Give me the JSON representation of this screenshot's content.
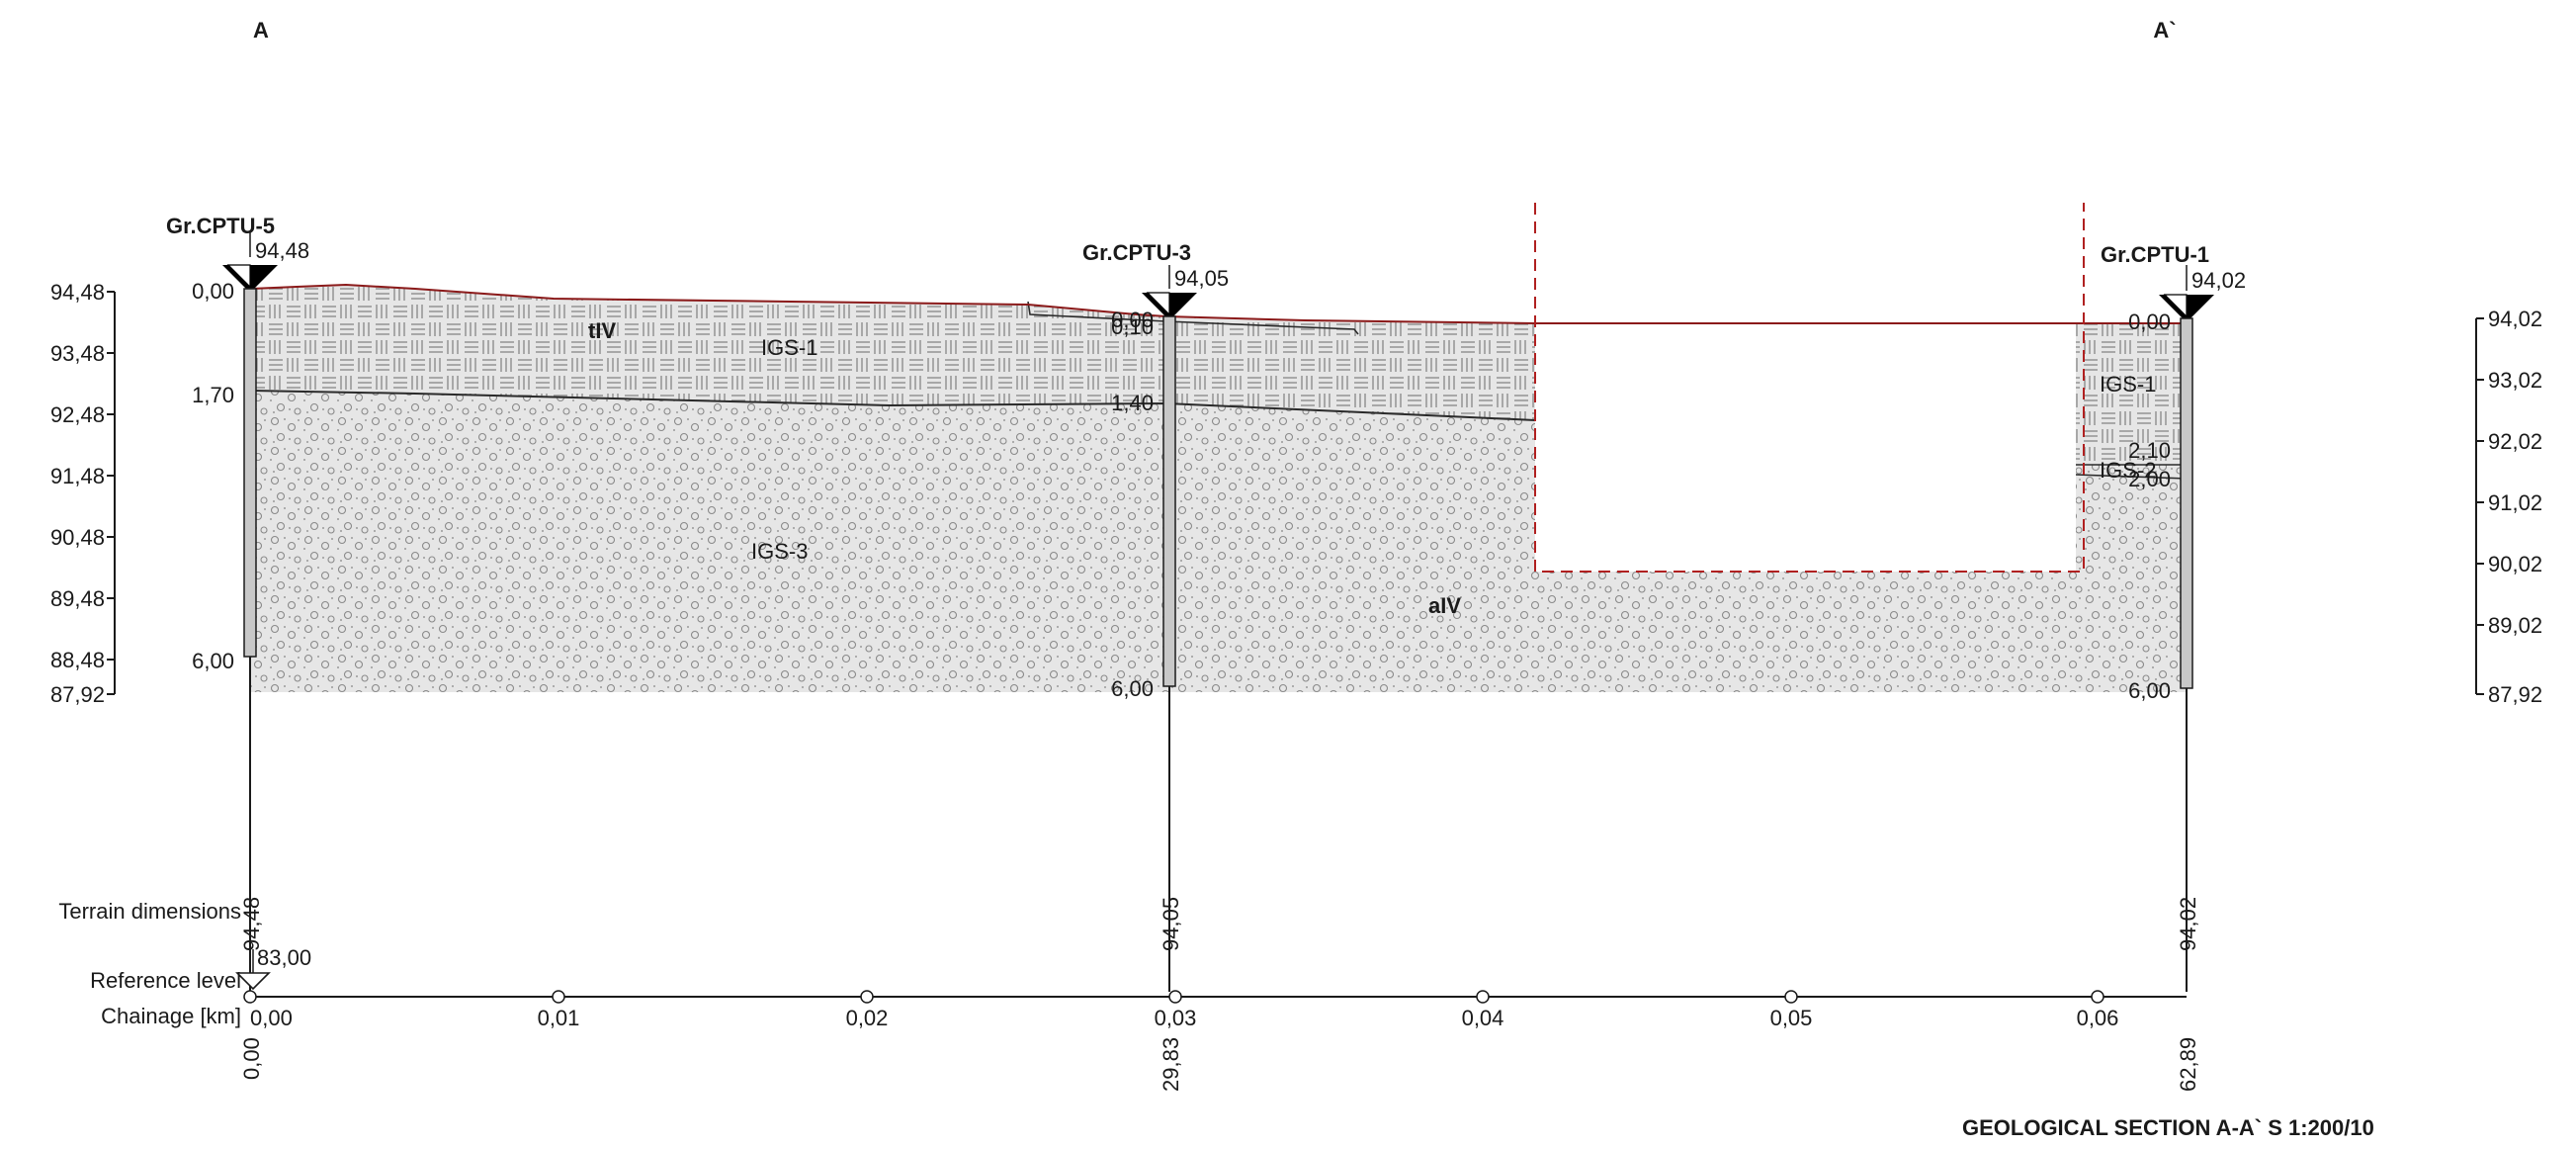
{
  "section": {
    "label_left": "A",
    "label_right": "A`",
    "title": "GEOLOGICAL SECTION A-A` S 1:200/10"
  },
  "left_axis": [
    "94,48",
    "93,48",
    "92,48",
    "91,48",
    "90,48",
    "89,48",
    "88,48",
    "87,92"
  ],
  "right_axis": [
    "94,02",
    "93,02",
    "92,02",
    "91,02",
    "90,02",
    "89,02",
    "87,92"
  ],
  "boreholes": [
    {
      "name": "Gr.CPTU-5",
      "elevation": "94,48",
      "depths": [
        "0,00",
        "1,70",
        "6,00"
      ],
      "terrain": "94,48",
      "distance": "0,00"
    },
    {
      "name": "Gr.CPTU-3",
      "elevation": "94,05",
      "depths": [
        "0,00",
        "0,10",
        "1,40",
        "6,00"
      ],
      "terrain": "94,05",
      "distance": "29,83"
    },
    {
      "name": "Gr.CPTU-1",
      "elevation": "94,02",
      "depths": [
        "0,00",
        "2,10",
        "2,00",
        "6,00"
      ],
      "terrain": "94,02",
      "distance": "62,89"
    }
  ],
  "layers": {
    "tiv": "tIV",
    "igs1_a": "IGS-1",
    "igs1_b": "IGS-1",
    "igs2": "IGS-2",
    "igs3": "IGS-3",
    "aiv": "aIV"
  },
  "bottom": {
    "terrain_label": "Terrain dimensions",
    "reference_label": "Reference level",
    "reference_value": "83,00",
    "chainage_label": "Chainage [km]",
    "chainage_ticks": [
      "0,00",
      "0,01",
      "0,02",
      "0,03",
      "0,04",
      "0,05",
      "0,06"
    ]
  },
  "colors": {
    "terrain_line": "#8b1a1a",
    "excavation_dash": "#b02020",
    "fill": "#e6e6e6",
    "pattern_stroke": "#8a8a8a"
  }
}
